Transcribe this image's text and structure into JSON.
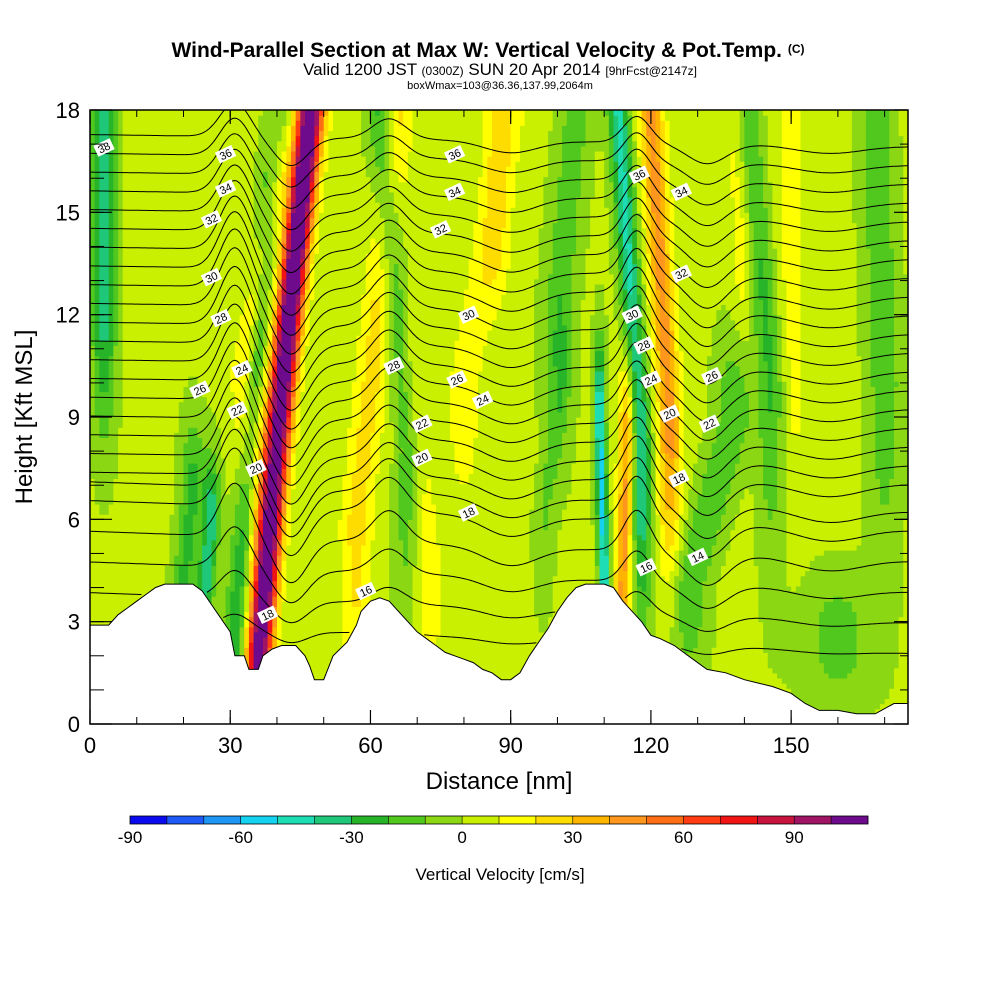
{
  "chart_data": {
    "type": "heatmap",
    "title": "Wind-Parallel Section at Max W: Vertical Velocity & Pot.Temp.",
    "title_mark": "(C)",
    "subtitle": {
      "prefix": "Valid 1200 JST",
      "utc": "(0300Z)",
      "date": "SUN 20 Apr 2014",
      "forecast": "[9hrFcst@2147z]"
    },
    "box_label": "boxWmax=103@36.36,137.99,2064m",
    "xlabel": "Distance [nm]",
    "ylabel": "Height [Kft MSL]",
    "xlim": [
      0,
      175
    ],
    "ylim": [
      0,
      18
    ],
    "x_ticks": [
      0,
      30,
      60,
      90,
      120,
      150
    ],
    "y_ticks": [
      0,
      3,
      6,
      9,
      12,
      15,
      18
    ],
    "x_minor_step": 10,
    "y_minor_step": 1,
    "colorbar": {
      "label": "Vertical Velocity [cm/s]",
      "levels": [
        -90,
        -80,
        -70,
        -60,
        -50,
        -40,
        -30,
        -20,
        -10,
        0,
        10,
        20,
        30,
        40,
        50,
        60,
        70,
        80,
        90,
        100,
        110
      ],
      "tick_values": [
        -90,
        -60,
        -30,
        0,
        30,
        60,
        90
      ],
      "tick_labels": [
        "-90",
        "-60",
        "-30",
        "0",
        "30",
        "60",
        "90"
      ],
      "colors": [
        "#0a0af0",
        "#1e5af5",
        "#1e96f5",
        "#14d2f0",
        "#1edcb4",
        "#1ec878",
        "#28b428",
        "#50c81e",
        "#8cd714",
        "#c8f000",
        "#ffff00",
        "#ffdc00",
        "#ffb400",
        "#ff961e",
        "#ff6e14",
        "#ff3c14",
        "#f01414",
        "#c8143c",
        "#a01464",
        "#6e0a8c"
      ]
    },
    "terrain_kft": [
      [
        0,
        2.9
      ],
      [
        4,
        2.9
      ],
      [
        6,
        3.2
      ],
      [
        8,
        3.4
      ],
      [
        10,
        3.6
      ],
      [
        12,
        3.8
      ],
      [
        14,
        4.0
      ],
      [
        16,
        4.1
      ],
      [
        18,
        4.1
      ],
      [
        20,
        4.1
      ],
      [
        22,
        4.1
      ],
      [
        24,
        3.9
      ],
      [
        26,
        3.5
      ],
      [
        28,
        3.1
      ],
      [
        30,
        2.7
      ],
      [
        31,
        2.0
      ],
      [
        33,
        2.0
      ],
      [
        34,
        1.6
      ],
      [
        36,
        1.6
      ],
      [
        37,
        2.0
      ],
      [
        39,
        2.2
      ],
      [
        41,
        2.3
      ],
      [
        44,
        2.3
      ],
      [
        46,
        2.0
      ],
      [
        47,
        1.7
      ],
      [
        48,
        1.3
      ],
      [
        50,
        1.3
      ],
      [
        52,
        2.0
      ],
      [
        55,
        2.4
      ],
      [
        57,
        2.9
      ],
      [
        58,
        3.3
      ],
      [
        60,
        3.6
      ],
      [
        62,
        3.7
      ],
      [
        64,
        3.6
      ],
      [
        66,
        3.3
      ],
      [
        68,
        3.0
      ],
      [
        70,
        2.7
      ],
      [
        72,
        2.5
      ],
      [
        74,
        2.3
      ],
      [
        76,
        2.1
      ],
      [
        78,
        2.0
      ],
      [
        80,
        1.9
      ],
      [
        82,
        1.8
      ],
      [
        84,
        1.6
      ],
      [
        86,
        1.5
      ],
      [
        88,
        1.3
      ],
      [
        90,
        1.3
      ],
      [
        92,
        1.5
      ],
      [
        94,
        2.0
      ],
      [
        96,
        2.4
      ],
      [
        98,
        2.8
      ],
      [
        100,
        3.3
      ],
      [
        102,
        3.7
      ],
      [
        104,
        4.0
      ],
      [
        106,
        4.1
      ],
      [
        108,
        4.1
      ],
      [
        110,
        4.1
      ],
      [
        112,
        4.0
      ],
      [
        114,
        3.6
      ],
      [
        116,
        3.3
      ],
      [
        118,
        3.0
      ],
      [
        120,
        2.6
      ],
      [
        122,
        2.5
      ],
      [
        125,
        2.3
      ],
      [
        128,
        2.0
      ],
      [
        132,
        1.6
      ],
      [
        136,
        1.5
      ],
      [
        140,
        1.3
      ],
      [
        143,
        1.2
      ],
      [
        146,
        1.1
      ],
      [
        150,
        0.9
      ],
      [
        153,
        0.6
      ],
      [
        156,
        0.4
      ],
      [
        160,
        0.4
      ],
      [
        164,
        0.3
      ],
      [
        168,
        0.3
      ],
      [
        172,
        0.6
      ],
      [
        175,
        0.6
      ]
    ],
    "w_features": [
      {
        "x0": 36,
        "z0": 2.0,
        "x1": 47,
        "z1": 18,
        "w": 100,
        "sx": 2.6,
        "sz": 4.0
      },
      {
        "x0": 37,
        "z0": 8.0,
        "x1": 48,
        "z1": 18,
        "w": 28,
        "sx": 3.2,
        "sz": 7.0
      },
      {
        "x0": 33,
        "z0": 10.5,
        "x1": 40,
        "z1": 16,
        "w": 25,
        "sx": 2.5,
        "sz": 3.5
      },
      {
        "x0": 31,
        "z0": 2.5,
        "x1": 40,
        "z1": 18,
        "w": -30,
        "sx": 2.5,
        "sz": 10.0
      },
      {
        "x0": 24,
        "z0": 3.0,
        "x1": 26,
        "z1": 6.0,
        "w": -40,
        "sx": 1.8,
        "sz": 1.8
      },
      {
        "x0": 3,
        "z0": 18,
        "x1": 3,
        "z1": 12,
        "w": -35,
        "sx": 2.5,
        "sz": 3.5
      },
      {
        "x0": 20,
        "z0": 4.0,
        "x1": 22,
        "z1": 7.0,
        "w": -25,
        "sx": 2.5,
        "sz": 2.0
      },
      {
        "x0": 57,
        "z0": 6.0,
        "x1": 66,
        "z1": 18,
        "w": 22,
        "sx": 3.5,
        "sz": 6.0
      },
      {
        "x0": 68,
        "z0": 8.0,
        "x1": 62,
        "z1": 18,
        "w": -28,
        "sx": 2.8,
        "sz": 5.0
      },
      {
        "x0": 72,
        "z0": 4.0,
        "x1": 68,
        "z1": 10,
        "w": 15,
        "sx": 4.0,
        "sz": 3.0
      },
      {
        "x0": 80,
        "z0": 10.0,
        "x1": 90,
        "z1": 18,
        "w": 14,
        "sx": 4.0,
        "sz": 4.0
      },
      {
        "x0": 87,
        "z0": 14.0,
        "x1": 87,
        "z1": 18,
        "w": 12,
        "sx": 3.0,
        "sz": 2.0
      },
      {
        "x0": 100,
        "z0": 12.0,
        "x1": 104,
        "z1": 18,
        "w": -18,
        "sx": 3.5,
        "sz": 4.0
      },
      {
        "x0": 97,
        "z0": 6.0,
        "x1": 101,
        "z1": 10,
        "w": -12,
        "sx": 2.0,
        "sz": 2.5
      },
      {
        "x0": 110,
        "z0": 4.5,
        "x1": 109,
        "z1": 9.0,
        "w": -55,
        "sx": 1.2,
        "sz": 2.2
      },
      {
        "x0": 114,
        "z0": 4.0,
        "x1": 115,
        "z1": 8.5,
        "w": 42,
        "sx": 1.8,
        "sz": 2.5
      },
      {
        "x0": 118,
        "z0": 8.0,
        "x1": 113,
        "z1": 18,
        "w": -45,
        "sx": 2.2,
        "sz": 5.0
      },
      {
        "x0": 124,
        "z0": 9.0,
        "x1": 120,
        "z1": 18,
        "w": 42,
        "sx": 2.6,
        "sz": 4.5
      },
      {
        "x0": 128,
        "z0": 4.0,
        "x1": 138,
        "z1": 9.0,
        "w": -22,
        "sx": 4.0,
        "sz": 2.5
      },
      {
        "x0": 146,
        "z0": 10.0,
        "x1": 140,
        "z1": 18,
        "w": -25,
        "sx": 3.0,
        "sz": 5.0
      },
      {
        "x0": 140,
        "z0": 14.0,
        "x1": 138,
        "z1": 18,
        "w": 18,
        "sx": 2.5,
        "sz": 3.0
      },
      {
        "x0": 150,
        "z0": 10.0,
        "x1": 150,
        "z1": 18,
        "w": 12,
        "sx": 3.5,
        "sz": 4.0
      },
      {
        "x0": 170,
        "z0": 10.0,
        "x1": 168,
        "z1": 18,
        "w": -20,
        "sx": 3.5,
        "sz": 5.0
      },
      {
        "x0": 160,
        "z0": 2.0,
        "x1": 160,
        "z1": 3.0,
        "w": -15,
        "sx": 8.0,
        "sz": 1.5
      }
    ],
    "theta_levels": [
      14,
      16,
      18,
      20,
      22,
      24,
      26,
      28,
      30,
      32,
      34,
      36,
      38
    ],
    "theta_level_step": 1,
    "theta_labels": [
      {
        "text": "38",
        "x": 3,
        "z": 16.9
      },
      {
        "text": "36",
        "x": 29,
        "z": 16.7
      },
      {
        "text": "34",
        "x": 29,
        "z": 15.7
      },
      {
        "text": "32",
        "x": 26,
        "z": 14.8
      },
      {
        "text": "30",
        "x": 26,
        "z": 13.1
      },
      {
        "text": "28",
        "x": 28,
        "z": 11.9
      },
      {
        "text": "26",
        "x": 23.5,
        "z": 9.8
      },
      {
        "text": "24",
        "x": 32.5,
        "z": 10.4
      },
      {
        "text": "22",
        "x": 31.5,
        "z": 9.2
      },
      {
        "text": "20",
        "x": 35.5,
        "z": 7.5
      },
      {
        "text": "18",
        "x": 38,
        "z": 3.2
      },
      {
        "text": "16",
        "x": 59,
        "z": 3.9
      },
      {
        "text": "28",
        "x": 65,
        "z": 10.5
      },
      {
        "text": "26",
        "x": 78.5,
        "z": 10.1
      },
      {
        "text": "24",
        "x": 84,
        "z": 9.5
      },
      {
        "text": "22",
        "x": 71,
        "z": 8.8
      },
      {
        "text": "20",
        "x": 71,
        "z": 7.8
      },
      {
        "text": "18",
        "x": 81,
        "z": 6.2
      },
      {
        "text": "30",
        "x": 81,
        "z": 12.0
      },
      {
        "text": "32",
        "x": 75,
        "z": 14.5
      },
      {
        "text": "34",
        "x": 78,
        "z": 15.6
      },
      {
        "text": "36",
        "x": 78,
        "z": 16.7
      },
      {
        "text": "36",
        "x": 117.5,
        "z": 16.1
      },
      {
        "text": "34",
        "x": 126.5,
        "z": 15.6
      },
      {
        "text": "32",
        "x": 126.5,
        "z": 13.2
      },
      {
        "text": "30",
        "x": 116,
        "z": 12.0
      },
      {
        "text": "28",
        "x": 118.5,
        "z": 11.1
      },
      {
        "text": "26",
        "x": 133,
        "z": 10.2
      },
      {
        "text": "24",
        "x": 120,
        "z": 10.1
      },
      {
        "text": "22",
        "x": 132.5,
        "z": 8.8
      },
      {
        "text": "20",
        "x": 124,
        "z": 9.1
      },
      {
        "text": "18",
        "x": 126,
        "z": 7.2
      },
      {
        "text": "16",
        "x": 119,
        "z": 4.6
      },
      {
        "text": "14",
        "x": 130,
        "z": 4.9
      }
    ]
  }
}
